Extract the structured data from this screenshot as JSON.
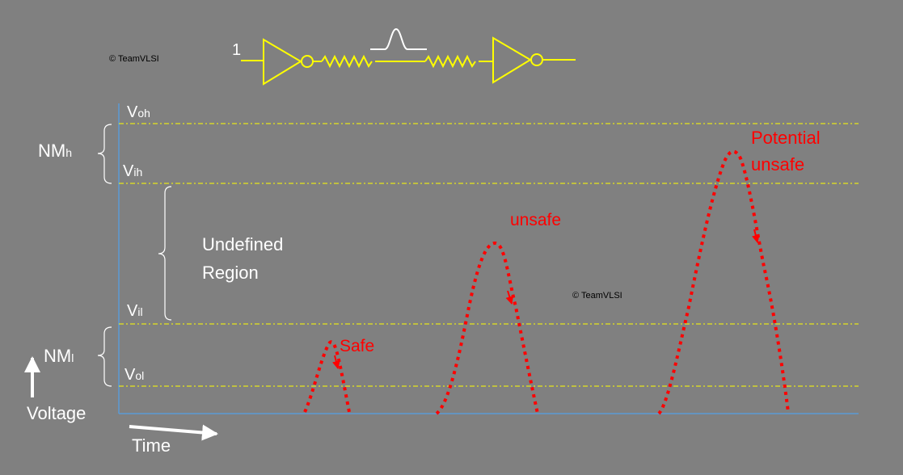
{
  "watermarks": [
    "© TeamVLSI",
    "© TeamVLSI"
  ],
  "circuit": {
    "input_label": "1",
    "wire_color": "#ffff00"
  },
  "levels": {
    "voh": {
      "main": "V",
      "sub": "oh"
    },
    "vih": {
      "main": "V",
      "sub": "ih"
    },
    "vil": {
      "main": "V",
      "sub": "il"
    },
    "vol": {
      "main": "V",
      "sub": "ol"
    }
  },
  "margins": {
    "nmh": {
      "main": "NM",
      "sub": "h"
    },
    "nml": {
      "main": "NM",
      "sub": "l"
    }
  },
  "undefined_region": [
    "Undefined",
    "Region"
  ],
  "axes": {
    "y_label": "Voltage",
    "x_label": "Time",
    "axis_color": "#5b9bd5",
    "level_line_color": "#ffff00"
  },
  "glitches": {
    "color": "#ff0000",
    "labels": {
      "safe": "Safe",
      "unsafe": "unsafe",
      "potential": [
        "Potential",
        "unsafe"
      ]
    }
  }
}
